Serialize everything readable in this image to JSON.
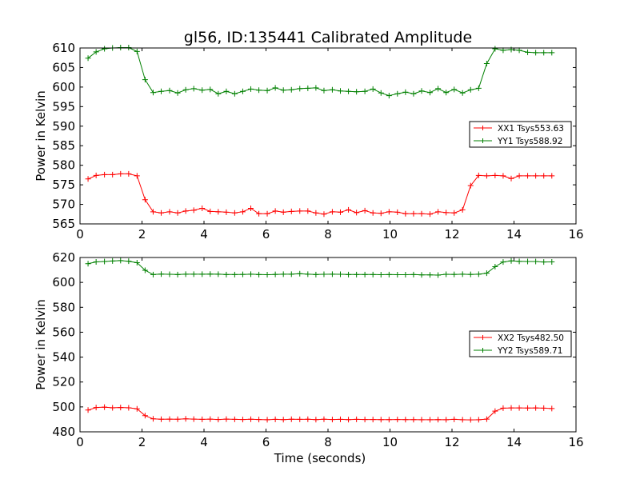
{
  "figure": {
    "title": "gl56, ID:135441 Calibrated Amplitude"
  },
  "chart_data": [
    {
      "type": "line",
      "title": "gl56, ID:135441 Calibrated Amplitude",
      "xlabel": "",
      "ylabel": "Power in Kelvin",
      "xlim": [
        0,
        16
      ],
      "ylim": [
        565,
        610
      ],
      "xticks": [
        0,
        2,
        4,
        6,
        8,
        10,
        12,
        14,
        16
      ],
      "yticks": [
        565,
        570,
        575,
        580,
        585,
        590,
        595,
        600,
        605,
        610
      ],
      "grid": false,
      "legend_position": "center-right",
      "x": [
        0.26,
        0.52,
        0.79,
        1.05,
        1.31,
        1.57,
        1.84,
        2.1,
        2.36,
        2.62,
        2.89,
        3.15,
        3.41,
        3.67,
        3.94,
        4.2,
        4.46,
        4.72,
        4.99,
        5.25,
        5.51,
        5.77,
        6.04,
        6.3,
        6.56,
        6.82,
        7.09,
        7.35,
        7.61,
        7.87,
        8.14,
        8.4,
        8.66,
        8.92,
        9.19,
        9.45,
        9.71,
        9.97,
        10.24,
        10.5,
        10.76,
        11.02,
        11.29,
        11.55,
        11.81,
        12.07,
        12.34,
        12.6,
        12.86,
        13.12,
        13.39,
        13.65,
        13.91,
        14.17,
        14.44,
        14.7,
        14.96,
        15.22
      ],
      "series": [
        {
          "name": "XX1 Tsys553.63",
          "color": "#ff0000",
          "marker": "plus",
          "values": [
            576.5,
            577.4,
            577.6,
            577.6,
            577.8,
            577.8,
            577.3,
            571.2,
            568.1,
            567.8,
            568.1,
            567.8,
            568.3,
            568.5,
            569.0,
            568.2,
            568.1,
            568.0,
            567.8,
            568.1,
            569.0,
            567.6,
            567.6,
            568.3,
            568.0,
            568.2,
            568.3,
            568.3,
            567.8,
            567.5,
            568.1,
            568.0,
            568.6,
            567.9,
            568.4,
            567.8,
            567.7,
            568.1,
            568.0,
            567.6,
            567.6,
            567.6,
            567.5,
            568.1,
            567.9,
            567.8,
            568.6,
            574.8,
            577.4,
            577.3,
            577.4,
            577.3,
            576.6,
            577.3,
            577.3,
            577.3,
            577.3,
            577.3
          ]
        },
        {
          "name": "YY1 Tsys588.92",
          "color": "#008000",
          "marker": "plus",
          "values": [
            607.4,
            609.0,
            609.8,
            610.0,
            610.1,
            610.1,
            609.1,
            601.9,
            598.6,
            598.9,
            599.1,
            598.5,
            599.3,
            599.6,
            599.2,
            599.4,
            598.3,
            598.9,
            598.3,
            598.9,
            599.5,
            599.2,
            599.1,
            599.8,
            599.2,
            599.3,
            599.6,
            599.7,
            599.8,
            599.1,
            599.3,
            599.0,
            598.9,
            598.8,
            598.9,
            599.5,
            598.5,
            597.8,
            598.3,
            598.7,
            598.3,
            599.0,
            598.6,
            599.6,
            598.6,
            599.4,
            598.5,
            599.3,
            599.7,
            606.0,
            609.8,
            609.4,
            609.6,
            609.4,
            608.9,
            608.8,
            608.8,
            608.8
          ]
        }
      ]
    },
    {
      "type": "line",
      "title": "",
      "xlabel": "Time (seconds)",
      "ylabel": "Power in Kelvin",
      "xlim": [
        0,
        16
      ],
      "ylim": [
        480,
        620
      ],
      "xticks": [
        0,
        2,
        4,
        6,
        8,
        10,
        12,
        14,
        16
      ],
      "yticks": [
        480,
        500,
        520,
        540,
        560,
        580,
        600,
        620
      ],
      "grid": false,
      "legend_position": "center-right",
      "x": [
        0.26,
        0.52,
        0.79,
        1.05,
        1.31,
        1.57,
        1.84,
        2.1,
        2.36,
        2.62,
        2.89,
        3.15,
        3.41,
        3.67,
        3.94,
        4.2,
        4.46,
        4.72,
        4.99,
        5.25,
        5.51,
        5.77,
        6.04,
        6.3,
        6.56,
        6.82,
        7.09,
        7.35,
        7.61,
        7.87,
        8.14,
        8.4,
        8.66,
        8.92,
        9.19,
        9.45,
        9.71,
        9.97,
        10.24,
        10.5,
        10.76,
        11.02,
        11.29,
        11.55,
        11.81,
        12.07,
        12.34,
        12.6,
        12.86,
        13.12,
        13.39,
        13.65,
        13.91,
        14.17,
        14.44,
        14.7,
        14.96,
        15.22
      ],
      "series": [
        {
          "name": "XX2 Tsys482.50",
          "color": "#ff0000",
          "marker": "plus",
          "values": [
            497.5,
            499.5,
            499.8,
            499.3,
            499.5,
            499.3,
            498.5,
            493.0,
            490.4,
            490.1,
            490.2,
            490.1,
            490.4,
            490.2,
            490.0,
            490.2,
            489.9,
            490.2,
            490.0,
            489.9,
            490.1,
            489.9,
            489.7,
            490.0,
            489.8,
            490.1,
            490.0,
            490.1,
            489.8,
            490.1,
            489.9,
            490.0,
            489.8,
            490.0,
            489.9,
            489.9,
            489.8,
            489.8,
            489.9,
            489.8,
            489.8,
            489.7,
            489.7,
            489.8,
            489.7,
            490.0,
            489.7,
            489.6,
            489.7,
            490.2,
            496.6,
            499.0,
            499.2,
            499.2,
            499.1,
            499.2,
            499.0,
            498.7
          ]
        },
        {
          "name": "YY2 Tsys589.71",
          "color": "#008000",
          "marker": "plus",
          "values": [
            615.0,
            616.5,
            616.8,
            617.2,
            617.5,
            617.0,
            615.8,
            609.7,
            606.3,
            606.7,
            606.5,
            606.3,
            606.6,
            606.6,
            606.6,
            606.7,
            606.6,
            606.3,
            606.3,
            606.4,
            606.6,
            606.3,
            606.2,
            606.4,
            606.6,
            606.6,
            607.0,
            606.6,
            606.3,
            606.5,
            606.6,
            606.5,
            606.3,
            606.3,
            606.3,
            606.3,
            606.2,
            606.3,
            606.2,
            606.2,
            606.3,
            606.0,
            606.0,
            605.9,
            606.5,
            606.4,
            606.6,
            606.4,
            606.6,
            607.4,
            612.6,
            616.4,
            617.3,
            616.9,
            616.8,
            616.8,
            616.4,
            616.5
          ]
        }
      ]
    }
  ]
}
